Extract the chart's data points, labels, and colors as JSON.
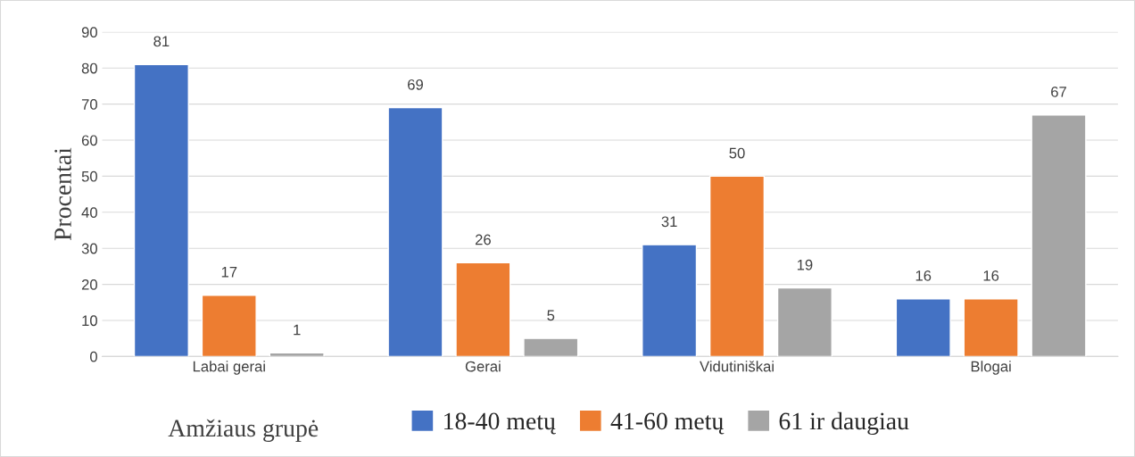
{
  "chart_data": {
    "type": "bar",
    "ylabel": "Procentai",
    "legend_title": "Amžiaus grupė",
    "categories": [
      "Labai gerai",
      "Gerai",
      "Vidutiniškai",
      "Blogai"
    ],
    "series": [
      {
        "name": "18-40 metų",
        "color": "#4472c4",
        "values": [
          81,
          69,
          31,
          16
        ]
      },
      {
        "name": "41-60 metų",
        "color": "#ed7d31",
        "values": [
          17,
          26,
          50,
          16
        ]
      },
      {
        "name": "61 ir daugiau",
        "color": "#a5a5a5",
        "values": [
          1,
          5,
          19,
          67
        ]
      }
    ],
    "ylim": [
      0,
      90
    ],
    "yticks": [
      0,
      10,
      20,
      30,
      40,
      50,
      60,
      70,
      80,
      90
    ],
    "grid": "y",
    "legend": "bottom",
    "data_labels": true
  }
}
